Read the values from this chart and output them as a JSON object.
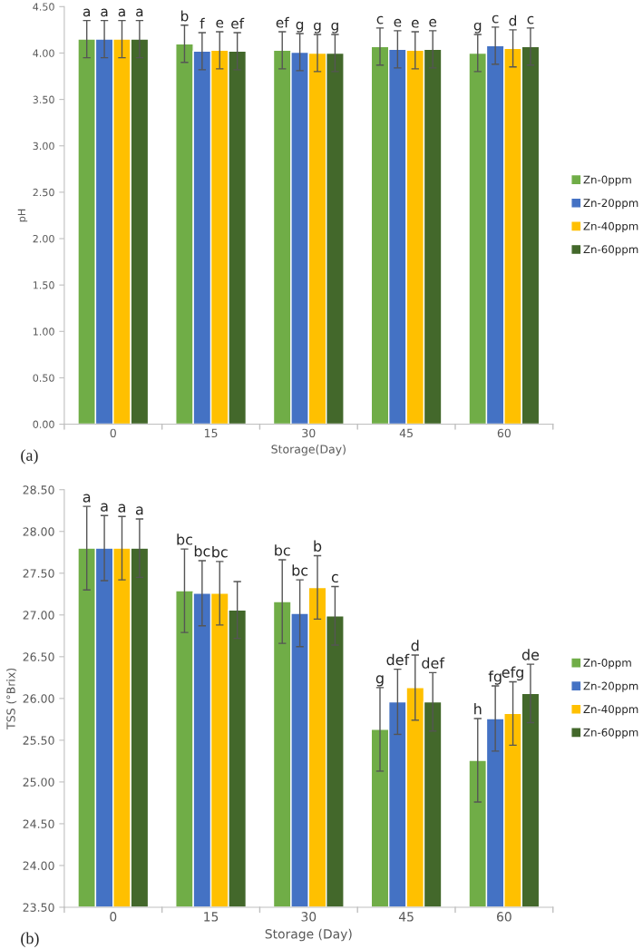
{
  "chart_data": [
    {
      "type": "bar",
      "xlabel": "Storage(Day)",
      "ylabel": "pH",
      "categories": [
        "0",
        "15",
        "30",
        "45",
        "60"
      ],
      "ylim": [
        0,
        4.5
      ],
      "yticks": [
        {
          "value": 0,
          "label": "0.00"
        },
        {
          "value": 0.5,
          "label": "0.50"
        },
        {
          "value": 1,
          "label": "1.00"
        },
        {
          "value": 1.5,
          "label": "1.50"
        },
        {
          "value": 2,
          "label": "2.00"
        },
        {
          "value": 2.5,
          "label": "2.50"
        },
        {
          "value": 3,
          "label": "3.00"
        },
        {
          "value": 3.5,
          "label": "3.50"
        },
        {
          "value": 4,
          "label": "4.00"
        },
        {
          "value": 4.5,
          "label": "4.50"
        }
      ],
      "grid": false,
      "legend": "right",
      "annotations": [
        "(a)"
      ],
      "series": [
        {
          "name": "Zn-0ppm",
          "color": "#70ad47",
          "values": [
            4.15,
            4.1,
            4.03,
            4.07,
            4.0
          ],
          "errors": [
            0.2,
            0.2,
            0.2,
            0.2,
            0.2
          ],
          "value_labels": [
            "a",
            "b",
            "ef",
            "c",
            "g"
          ]
        },
        {
          "name": "Zn-20ppm",
          "color": "#4472c4",
          "values": [
            4.15,
            4.02,
            4.01,
            4.04,
            4.08
          ],
          "errors": [
            0.2,
            0.2,
            0.2,
            0.2,
            0.2
          ],
          "value_labels": [
            "a",
            "f",
            "g",
            "e",
            "c"
          ]
        },
        {
          "name": "Zn-40ppm",
          "color": "#ffc000",
          "values": [
            4.15,
            4.03,
            4.0,
            4.03,
            4.05
          ],
          "errors": [
            0.2,
            0.2,
            0.2,
            0.2,
            0.2
          ],
          "value_labels": [
            "a",
            "e",
            "g",
            "e",
            "d"
          ]
        },
        {
          "name": "Zn-60ppm",
          "color": "#43682b",
          "values": [
            4.15,
            4.02,
            4.0,
            4.04,
            4.07
          ],
          "errors": [
            0.2,
            0.2,
            0.2,
            0.2,
            0.2
          ],
          "value_labels": [
            "a",
            "ef",
            "g",
            "e",
            "c"
          ]
        }
      ]
    },
    {
      "type": "bar",
      "xlabel": "Storage (Day)",
      "ylabel": "TSS (°Brix)",
      "categories": [
        "0",
        "15",
        "30",
        "45",
        "60"
      ],
      "ylim": [
        23.5,
        28.5
      ],
      "yticks": [
        {
          "value": 23.5,
          "label": "23.50"
        },
        {
          "value": 24,
          "label": "24.00"
        },
        {
          "value": 24.5,
          "label": "24.50"
        },
        {
          "value": 25,
          "label": "25.00"
        },
        {
          "value": 25.5,
          "label": "25.50"
        },
        {
          "value": 26,
          "label": "26.00"
        },
        {
          "value": 26.5,
          "label": "26.50"
        },
        {
          "value": 27,
          "label": "27.00"
        },
        {
          "value": 27.5,
          "label": "27.50"
        },
        {
          "value": 28,
          "label": "28.00"
        },
        {
          "value": 28.5,
          "label": "28.50"
        }
      ],
      "grid": false,
      "legend": "right",
      "annotations": [
        "(b)"
      ],
      "series": [
        {
          "name": "Zn-0ppm",
          "color": "#70ad47",
          "values": [
            27.8,
            27.29,
            27.16,
            25.63,
            25.26
          ],
          "errors": [
            0.5,
            0.5,
            0.5,
            0.5,
            0.5
          ],
          "value_labels": [
            "a",
            "bc",
            "bc",
            "g",
            "h"
          ]
        },
        {
          "name": "Zn-20ppm",
          "color": "#4472c4",
          "values": [
            27.8,
            27.26,
            27.02,
            25.96,
            25.76
          ],
          "errors": [
            0.39,
            0.39,
            0.4,
            0.39,
            0.39
          ],
          "value_labels": [
            "a",
            "bc",
            "bc",
            "def",
            "fg"
          ]
        },
        {
          "name": "Zn-40ppm",
          "color": "#ffc000",
          "values": [
            27.8,
            27.26,
            27.33,
            26.13,
            25.82
          ],
          "errors": [
            0.38,
            0.38,
            0.38,
            0.39,
            0.38
          ],
          "value_labels": [
            "a",
            "bc",
            "b",
            "d",
            "efg"
          ]
        },
        {
          "name": "Zn-60ppm",
          "color": "#43682b",
          "values": [
            27.8,
            27.06,
            26.99,
            25.96,
            26.06
          ],
          "errors": [
            0.35,
            0.34,
            0.35,
            0.35,
            0.35
          ],
          "value_labels": [
            "a",
            null,
            "c",
            "def",
            "de"
          ]
        }
      ]
    }
  ]
}
